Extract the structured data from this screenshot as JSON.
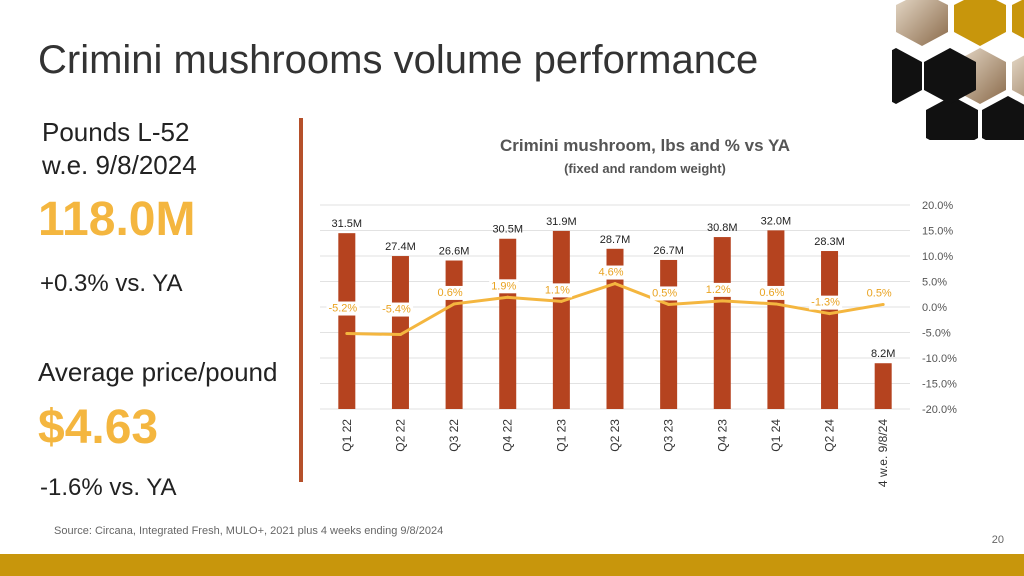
{
  "title": "Crimini mushrooms volume performance",
  "kpis": {
    "pounds_label_line1": "Pounds L-52",
    "pounds_label_line2": "w.e. 9/8/2024",
    "pounds_value": "118.0M",
    "pounds_change": "+0.3% vs. YA",
    "price_label": "Average price/pound",
    "price_value": "$4.63",
    "price_change": "-1.6% vs. YA"
  },
  "chart_data": {
    "type": "bar",
    "title": "Crimini mushroom, lbs and % vs YA",
    "subtitle": "(fixed and random weight)",
    "categories": [
      "Q1 22",
      "Q2 22",
      "Q3 22",
      "Q4 22",
      "Q1 23",
      "Q2 23",
      "Q3 23",
      "Q4 23",
      "Q1 24",
      "Q2 24",
      "4 w.e. 9/8/24"
    ],
    "series": [
      {
        "values": [
          31.5,
          27.4,
          26.6,
          30.5,
          31.9,
          28.7,
          26.7,
          30.8,
          32.0,
          28.3,
          8.2
        ],
        "labels": [
          "31.5M",
          "27.4M",
          "26.6M",
          "30.5M",
          "31.9M",
          "28.7M",
          "26.7M",
          "30.8M",
          "32.0M",
          "28.3M",
          "8.2M"
        ],
        "color": "#b5431f",
        "type": "bar"
      },
      {
        "values": [
          -5.2,
          -5.4,
          0.6,
          1.9,
          1.1,
          4.6,
          0.5,
          1.2,
          0.6,
          -1.3,
          0.5
        ],
        "labels": [
          "-5.2%",
          "-5.4%",
          "0.6%",
          "1.9%",
          "1.1%",
          "4.6%",
          "0.5%",
          "1.2%",
          "0.6%",
          "-1.3%",
          "0.5%"
        ],
        "color": "#f4b63f",
        "type": "line",
        "axis": "right"
      }
    ],
    "y2_ticks": [
      "20.0%",
      "15.0%",
      "10.0%",
      "5.0%",
      "0.0%",
      "-5.0%",
      "-10.0%",
      "-15.0%",
      "-20.0%"
    ],
    "y2lim": [
      -20,
      20
    ],
    "grid": true
  },
  "footer": {
    "source": "Source: Circana, Integrated Fresh, MULO+, 2021 plus 4 weeks ending 9/8/2024",
    "page_number": "20"
  },
  "colors": {
    "accent": "#f4b63f",
    "bar": "#b5431f",
    "divider": "#b5502a",
    "footer_bar": "#c8960c"
  }
}
